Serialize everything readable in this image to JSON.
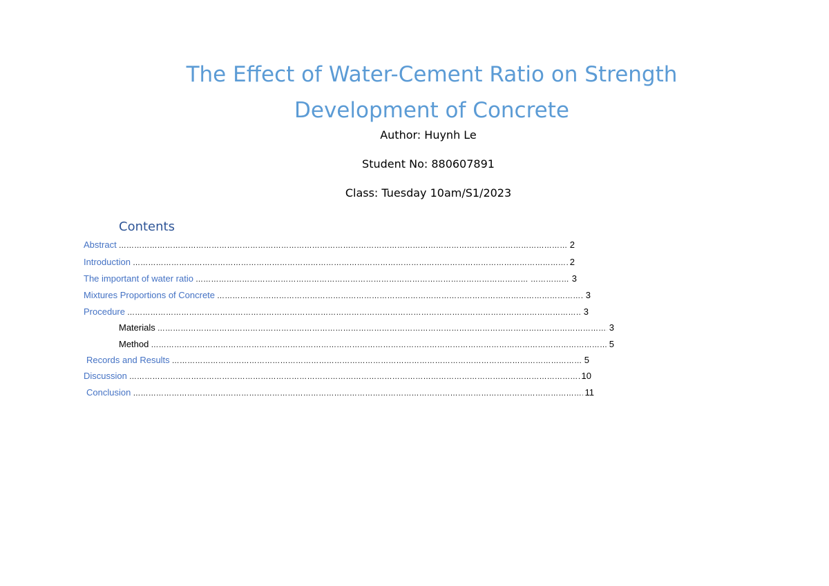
{
  "document": {
    "title_line1": "The Effect of Water-Cement Ratio on Strength",
    "title_line2": "Development of Concrete",
    "author": "Author: Huynh Le",
    "student_no": "Student No: 880607891",
    "class": "Class: Tuesday 10am/S1/2023"
  },
  "toc": {
    "heading": "Contents",
    "entries": [
      {
        "label": "Abstract",
        "page": "2"
      },
      {
        "label": "Introduction",
        "page": "2"
      },
      {
        "label": "The important of water ratio",
        "page": "3"
      },
      {
        "label": "Mixtures Proportions of Concrete",
        "page": "3"
      },
      {
        "label": "Procedure",
        "page": "3"
      },
      {
        "label": "Materials",
        "page": "3"
      },
      {
        "label": "Method",
        "page": "5"
      },
      {
        "label": "Records and Results",
        "page": "5"
      },
      {
        "label": "Discussion",
        "page": "10"
      },
      {
        "label": "Conclusion",
        "page": "11"
      }
    ],
    "colors": {
      "title": "#5b9bd5",
      "heading": "#2e5597",
      "entry_link": "#4472c4",
      "text": "#000000"
    }
  }
}
